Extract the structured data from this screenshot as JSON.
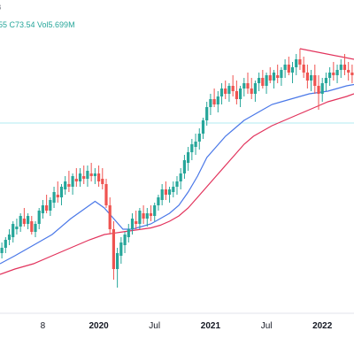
{
  "legend": {
    "top_fragment": "B",
    "ohlc_text": "55  C73.54  Vol5.699M"
  },
  "chart_data": {
    "type": "candlestick",
    "x_axis_labels": [
      {
        "label": "8",
        "t": 3.0,
        "bold": false
      },
      {
        "label": "2020",
        "t": 9.0,
        "bold": true
      },
      {
        "label": "Jul",
        "t": 15.0,
        "bold": false
      },
      {
        "label": "2021",
        "t": 21.0,
        "bold": true
      },
      {
        "label": "Jul",
        "t": 27.0,
        "bold": false
      },
      {
        "label": "2022",
        "t": 33.0,
        "bold": true
      }
    ],
    "x_range": [
      -1.6,
      36.4
    ],
    "y_range": [
      10,
      110
    ],
    "horizontal_line": 77,
    "candles": [
      [
        -1.4,
        28,
        32,
        26,
        30
      ],
      [
        -1.0,
        30,
        34,
        28,
        33
      ],
      [
        -0.6,
        33,
        37,
        31,
        35
      ],
      [
        -0.2,
        34,
        40,
        32,
        39
      ],
      [
        0.2,
        37,
        41,
        35,
        38
      ],
      [
        0.6,
        38,
        43,
        36,
        42
      ],
      [
        1.0,
        41,
        45,
        38,
        39
      ],
      [
        1.4,
        39,
        43,
        37,
        42
      ],
      [
        1.8,
        40,
        42,
        35,
        36
      ],
      [
        2.2,
        36,
        40,
        34,
        39
      ],
      [
        2.6,
        39,
        45,
        37,
        44
      ],
      [
        3.0,
        43,
        48,
        41,
        46
      ],
      [
        3.4,
        46,
        50,
        43,
        44
      ],
      [
        3.8,
        44,
        49,
        42,
        48
      ],
      [
        4.2,
        47,
        53,
        45,
        51
      ],
      [
        4.6,
        50,
        55,
        47,
        49
      ],
      [
        5.0,
        49,
        54,
        46,
        53
      ],
      [
        5.4,
        52,
        57,
        50,
        55
      ],
      [
        5.8,
        54,
        59,
        51,
        53
      ],
      [
        6.2,
        53,
        58,
        50,
        57
      ],
      [
        6.6,
        56,
        60,
        53,
        55
      ],
      [
        7.0,
        55,
        60,
        53,
        58
      ],
      [
        7.4,
        57,
        61,
        54,
        56
      ],
      [
        7.8,
        56,
        61,
        53,
        59
      ],
      [
        8.2,
        58,
        62,
        55,
        57
      ],
      [
        8.6,
        57,
        60,
        54,
        58
      ],
      [
        9.0,
        58,
        61,
        53,
        55
      ],
      [
        9.4,
        56,
        60,
        52,
        54
      ],
      [
        9.8,
        54,
        56,
        45,
        46
      ],
      [
        10.2,
        46,
        49,
        35,
        37
      ],
      [
        10.6,
        37,
        40,
        18,
        22
      ],
      [
        11.0,
        22,
        30,
        15,
        28
      ],
      [
        11.4,
        27,
        34,
        24,
        32
      ],
      [
        11.8,
        31,
        36,
        28,
        35
      ],
      [
        12.2,
        34,
        39,
        32,
        37
      ],
      [
        12.6,
        37,
        43,
        35,
        41
      ],
      [
        13.0,
        40,
        44,
        37,
        39
      ],
      [
        13.4,
        39,
        45,
        37,
        44
      ],
      [
        13.8,
        43,
        46,
        39,
        41
      ],
      [
        14.2,
        41,
        45,
        38,
        43
      ],
      [
        14.6,
        43,
        46,
        40,
        42
      ],
      [
        15.0,
        42,
        47,
        40,
        46
      ],
      [
        15.4,
        46,
        50,
        44,
        49
      ],
      [
        15.8,
        48,
        54,
        46,
        52
      ],
      [
        16.2,
        52,
        55,
        48,
        50
      ],
      [
        16.6,
        50,
        53,
        47,
        52
      ],
      [
        17.0,
        51,
        55,
        49,
        53
      ],
      [
        17.4,
        53,
        57,
        50,
        55
      ],
      [
        17.8,
        55,
        60,
        52,
        58
      ],
      [
        18.2,
        58,
        65,
        56,
        63
      ],
      [
        18.6,
        62,
        68,
        59,
        66
      ],
      [
        19.0,
        66,
        71,
        63,
        69
      ],
      [
        19.4,
        68,
        73,
        65,
        70
      ],
      [
        19.8,
        70,
        75,
        67,
        73
      ],
      [
        20.2,
        73,
        79,
        71,
        78
      ],
      [
        20.6,
        78,
        85,
        76,
        83
      ],
      [
        21.0,
        83,
        88,
        80,
        86
      ],
      [
        21.4,
        86,
        90,
        83,
        84
      ],
      [
        21.8,
        84,
        89,
        81,
        87
      ],
      [
        22.2,
        87,
        92,
        84,
        90
      ],
      [
        22.6,
        90,
        93,
        86,
        88
      ],
      [
        23.0,
        88,
        92,
        85,
        91
      ],
      [
        23.4,
        91,
        95,
        87,
        89
      ],
      [
        23.8,
        89,
        93,
        84,
        86
      ],
      [
        24.2,
        86,
        91,
        83,
        90
      ],
      [
        24.6,
        90,
        94,
        87,
        92
      ],
      [
        25.0,
        92,
        96,
        88,
        90
      ],
      [
        25.4,
        90,
        94,
        86,
        88
      ],
      [
        25.8,
        88,
        93,
        85,
        92
      ],
      [
        26.2,
        92,
        96,
        89,
        94
      ],
      [
        26.6,
        94,
        97,
        90,
        91
      ],
      [
        27.0,
        91,
        96,
        88,
        95
      ],
      [
        27.4,
        95,
        98,
        92,
        93
      ],
      [
        27.8,
        93,
        97,
        90,
        96
      ],
      [
        28.2,
        95,
        99,
        92,
        94
      ],
      [
        28.6,
        94,
        98,
        91,
        97
      ],
      [
        29.0,
        97,
        101,
        94,
        99
      ],
      [
        29.4,
        99,
        102,
        95,
        96
      ],
      [
        29.8,
        96,
        100,
        92,
        98
      ],
      [
        30.2,
        98,
        103,
        95,
        101
      ],
      [
        30.6,
        101,
        105,
        97,
        99
      ],
      [
        31.0,
        99,
        102,
        94,
        96
      ],
      [
        31.4,
        96,
        99,
        90,
        93
      ],
      [
        31.8,
        93,
        97,
        89,
        95
      ],
      [
        32.2,
        95,
        99,
        88,
        91
      ],
      [
        32.6,
        91,
        95,
        82,
        88
      ],
      [
        33.0,
        88,
        94,
        85,
        92
      ],
      [
        33.4,
        92,
        96,
        89,
        94
      ],
      [
        33.8,
        94,
        98,
        91,
        96
      ],
      [
        34.2,
        96,
        100,
        93,
        95
      ],
      [
        34.6,
        95,
        99,
        92,
        97
      ],
      [
        35.0,
        97,
        101,
        94,
        99
      ],
      [
        35.4,
        99,
        103,
        95,
        97
      ],
      [
        35.8,
        97,
        100,
        93,
        96
      ],
      [
        36.2,
        96,
        99,
        92,
        95
      ]
    ],
    "series": [
      {
        "color": "#4a78e8",
        "points": [
          [
            -1.6,
            24
          ],
          [
            0,
            27
          ],
          [
            2,
            31
          ],
          [
            4,
            35
          ],
          [
            6,
            41
          ],
          [
            8,
            46
          ],
          [
            8.6,
            47.5
          ],
          [
            9.6,
            45
          ],
          [
            10.6,
            41
          ],
          [
            11.6,
            37
          ],
          [
            12.6,
            37
          ],
          [
            13.6,
            38
          ],
          [
            14.6,
            39
          ],
          [
            15.6,
            41
          ],
          [
            16.6,
            43
          ],
          [
            17.6,
            46
          ],
          [
            18.6,
            51
          ],
          [
            19.6,
            57
          ],
          [
            20.6,
            64
          ],
          [
            21.6,
            68
          ],
          [
            22.6,
            72
          ],
          [
            23.6,
            75
          ],
          [
            24.6,
            78
          ],
          [
            25.6,
            80
          ],
          [
            26.6,
            82
          ],
          [
            27.6,
            84
          ],
          [
            28.6,
            85
          ],
          [
            29.6,
            86
          ],
          [
            30.6,
            87
          ],
          [
            31.6,
            88
          ],
          [
            32.6,
            88.5
          ],
          [
            33.6,
            89
          ],
          [
            34.6,
            90
          ],
          [
            35.6,
            91
          ],
          [
            36.4,
            91.5
          ]
        ]
      },
      {
        "color": "#e2335c",
        "points": [
          [
            -1.6,
            20
          ],
          [
            0,
            22
          ],
          [
            2,
            24
          ],
          [
            4,
            27
          ],
          [
            6,
            30
          ],
          [
            8,
            33
          ],
          [
            9.6,
            35
          ],
          [
            11.6,
            36
          ],
          [
            12.6,
            36.5
          ],
          [
            13.6,
            37
          ],
          [
            14.6,
            37.5
          ],
          [
            15.6,
            38.5
          ],
          [
            16.6,
            40
          ],
          [
            17.6,
            42
          ],
          [
            18.6,
            45
          ],
          [
            19.6,
            49
          ],
          [
            20.6,
            53
          ],
          [
            21.6,
            57
          ],
          [
            22.6,
            61
          ],
          [
            23.6,
            65
          ],
          [
            24.6,
            69
          ],
          [
            25.6,
            72
          ],
          [
            26.6,
            74
          ],
          [
            27.6,
            76
          ],
          [
            28.6,
            77.5
          ],
          [
            29.6,
            79
          ],
          [
            30.6,
            80.5
          ],
          [
            31.6,
            82
          ],
          [
            32.6,
            83.5
          ],
          [
            33.6,
            85
          ],
          [
            34.6,
            86
          ],
          [
            35.6,
            87
          ],
          [
            36.4,
            88
          ]
        ]
      },
      {
        "color": "#e2335c",
        "points": [
          [
            30.6,
            105
          ],
          [
            36.4,
            101
          ]
        ]
      }
    ]
  }
}
